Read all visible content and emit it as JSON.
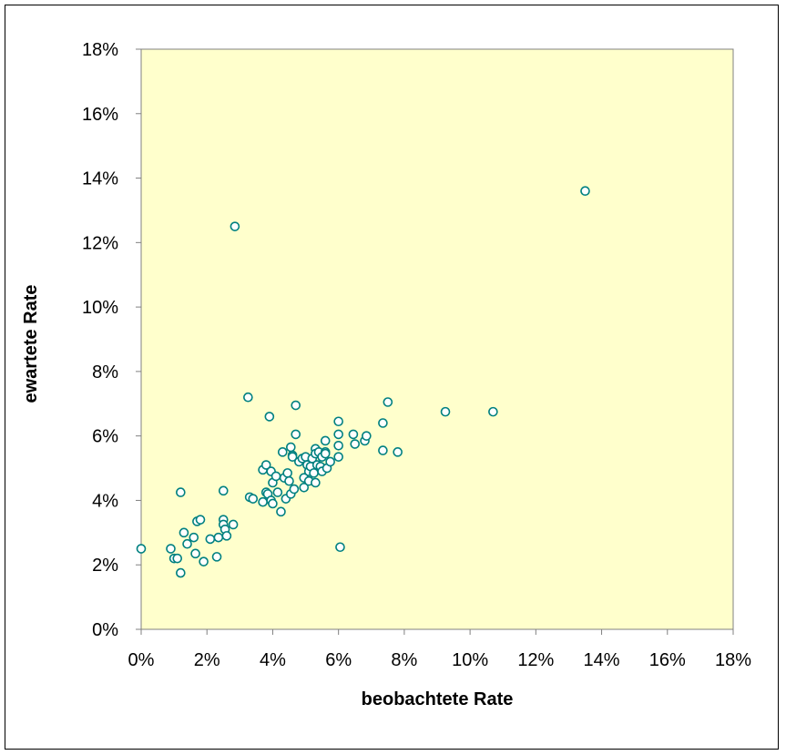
{
  "chart_data": {
    "type": "scatter",
    "xlabel": "beobachtete Rate",
    "ylabel": "ewartete Rate",
    "xlim": [
      0,
      18
    ],
    "ylim": [
      0,
      18
    ],
    "x_ticks": [
      "0%",
      "2%",
      "4%",
      "6%",
      "8%",
      "10%",
      "12%",
      "14%",
      "16%",
      "18%"
    ],
    "y_ticks": [
      "0%",
      "2%",
      "4%",
      "6%",
      "8%",
      "10%",
      "12%",
      "14%",
      "16%",
      "18%"
    ],
    "grid": false,
    "legend": "none",
    "plot_background": "#ffffcc",
    "marker_color": "#008080",
    "series": [
      {
        "points": [
          [
            0.0,
            2.5
          ],
          [
            0.9,
            2.5
          ],
          [
            1.0,
            2.2
          ],
          [
            1.1,
            2.2
          ],
          [
            1.2,
            1.75
          ],
          [
            1.2,
            4.25
          ],
          [
            1.3,
            3.0
          ],
          [
            1.4,
            2.65
          ],
          [
            1.6,
            2.85
          ],
          [
            1.65,
            2.35
          ],
          [
            1.7,
            3.35
          ],
          [
            1.8,
            3.4
          ],
          [
            1.9,
            2.1
          ],
          [
            2.1,
            2.8
          ],
          [
            2.3,
            2.25
          ],
          [
            2.35,
            2.85
          ],
          [
            2.5,
            4.3
          ],
          [
            2.5,
            3.4
          ],
          [
            2.5,
            3.25
          ],
          [
            2.55,
            3.1
          ],
          [
            2.6,
            2.9
          ],
          [
            2.8,
            3.25
          ],
          [
            2.85,
            12.5
          ],
          [
            3.25,
            7.2
          ],
          [
            3.3,
            4.1
          ],
          [
            3.4,
            4.05
          ],
          [
            3.7,
            4.95
          ],
          [
            3.7,
            3.95
          ],
          [
            3.8,
            4.25
          ],
          [
            3.8,
            5.1
          ],
          [
            3.85,
            4.2
          ],
          [
            3.9,
            6.6
          ],
          [
            3.95,
            4.9
          ],
          [
            3.95,
            4.0
          ],
          [
            4.0,
            4.55
          ],
          [
            4.0,
            3.9
          ],
          [
            4.1,
            4.75
          ],
          [
            4.15,
            4.25
          ],
          [
            4.25,
            3.65
          ],
          [
            4.3,
            5.5
          ],
          [
            4.35,
            4.7
          ],
          [
            4.4,
            4.05
          ],
          [
            4.45,
            4.85
          ],
          [
            4.5,
            4.6
          ],
          [
            4.55,
            4.2
          ],
          [
            4.55,
            5.65
          ],
          [
            4.6,
            5.4
          ],
          [
            4.6,
            5.35
          ],
          [
            4.65,
            4.35
          ],
          [
            4.7,
            6.95
          ],
          [
            4.7,
            6.05
          ],
          [
            4.8,
            5.2
          ],
          [
            4.9,
            5.3
          ],
          [
            4.95,
            4.4
          ],
          [
            4.95,
            4.7
          ],
          [
            5.0,
            5.35
          ],
          [
            5.05,
            5.1
          ],
          [
            5.1,
            4.6
          ],
          [
            5.1,
            4.9
          ],
          [
            5.15,
            5.05
          ],
          [
            5.2,
            5.3
          ],
          [
            5.25,
            4.85
          ],
          [
            5.3,
            5.6
          ],
          [
            5.3,
            5.45
          ],
          [
            5.3,
            4.55
          ],
          [
            5.35,
            5.1
          ],
          [
            5.4,
            5.5
          ],
          [
            5.45,
            5.05
          ],
          [
            5.5,
            5.35
          ],
          [
            5.5,
            4.9
          ],
          [
            5.6,
            5.5
          ],
          [
            5.6,
            5.45
          ],
          [
            5.6,
            5.85
          ],
          [
            5.65,
            5.0
          ],
          [
            5.75,
            5.2
          ],
          [
            6.0,
            6.45
          ],
          [
            6.0,
            6.05
          ],
          [
            6.0,
            5.7
          ],
          [
            6.0,
            5.35
          ],
          [
            6.05,
            2.55
          ],
          [
            6.45,
            6.05
          ],
          [
            6.5,
            5.75
          ],
          [
            6.8,
            5.85
          ],
          [
            6.85,
            6.0
          ],
          [
            7.35,
            6.4
          ],
          [
            7.35,
            5.55
          ],
          [
            7.5,
            7.05
          ],
          [
            7.8,
            5.5
          ],
          [
            9.25,
            6.75
          ],
          [
            10.7,
            6.75
          ],
          [
            13.5,
            13.6
          ]
        ]
      }
    ]
  }
}
